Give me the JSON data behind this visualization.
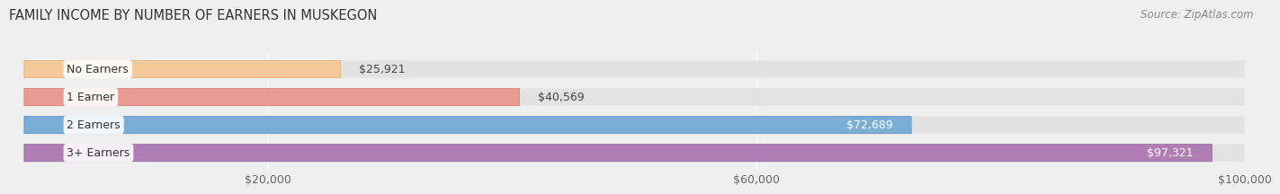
{
  "title": "FAMILY INCOME BY NUMBER OF EARNERS IN MUSKEGON",
  "source": "Source: ZipAtlas.com",
  "categories": [
    "No Earners",
    "1 Earner",
    "2 Earners",
    "3+ Earners"
  ],
  "values": [
    25921,
    40569,
    72689,
    97321
  ],
  "bar_colors": [
    "#f5c99a",
    "#e89b93",
    "#7aaed6",
    "#b07db5"
  ],
  "bar_edge_colors": [
    "#e8a86a",
    "#d97a70",
    "#5a8fc4",
    "#9060a0"
  ],
  "bg_color": "#efefef",
  "bar_bg_color": "#e2e2e2",
  "xlim": [
    0,
    100000
  ],
  "xticks": [
    20000,
    60000,
    100000
  ],
  "xticklabels": [
    "$20,000",
    "$60,000",
    "$100,000"
  ],
  "bar_height": 0.62,
  "label_fontsize": 9,
  "title_fontsize": 10.5,
  "source_fontsize": 8.5,
  "tick_fontsize": 9,
  "value_threshold": 55000
}
